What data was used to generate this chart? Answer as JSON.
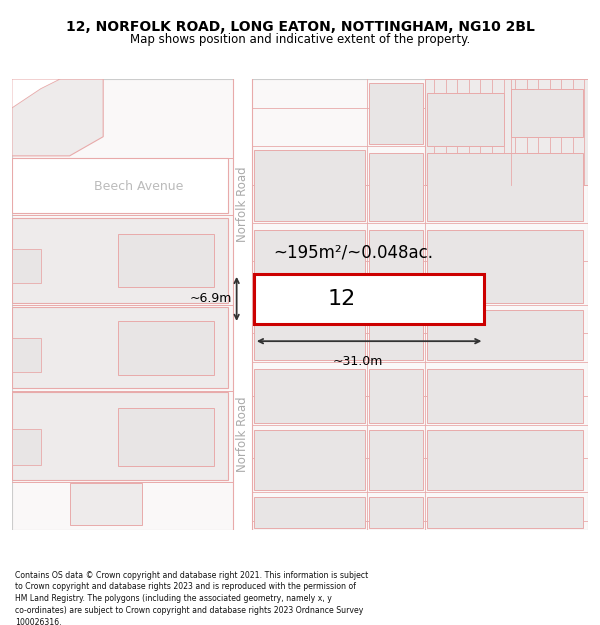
{
  "title_line1": "12, NORFOLK ROAD, LONG EATON, NOTTINGHAM, NG10 2BL",
  "title_line2": "Map shows position and indicative extent of the property.",
  "footer_text": "Contains OS data © Crown copyright and database right 2021. This information is subject to Crown copyright and database rights 2023 and is reproduced with the permission of HM Land Registry. The polygons (including the associated geometry, namely x, y co-ordinates) are subject to Crown copyright and database rights 2023 Ordnance Survey 100026316.",
  "bg_color": "#ffffff",
  "map_bg": "#faf8f8",
  "road_fill": "#ffffff",
  "bld_fill": "#eeebeb",
  "bld_inner_fill": "#e8e5e5",
  "bld_edge": "#e8aaaa",
  "highlight_edge": "#cc0000",
  "highlight_fill": "#ffffff",
  "road_label": "Norfolk Road",
  "street_label": "Beech Avenue",
  "property_number": "12",
  "area_label": "~195m²/~0.048ac.",
  "dim_w_label": "~31.0m",
  "dim_h_label": "~6.9m",
  "title_fs": 10,
  "subtitle_fs": 8.5,
  "footer_fs": 5.6
}
